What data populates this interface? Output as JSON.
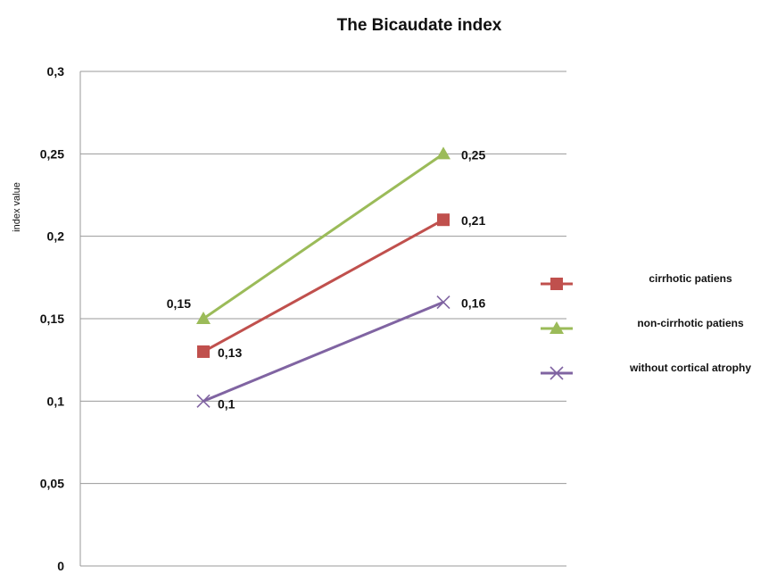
{
  "chart_data": {
    "type": "line",
    "title": "The Bicaudate index",
    "xlabel": "",
    "ylabel": "index value",
    "ylim": [
      0,
      0.3
    ],
    "yticks": [
      0,
      0.05,
      0.1,
      0.15,
      0.2,
      0.25,
      0.3
    ],
    "ytick_labels": [
      "0",
      "0,05",
      "0,1",
      "0,15",
      "0,2",
      "0,25",
      "0,3"
    ],
    "grid": true,
    "legend": "right",
    "categories": [
      "",
      ""
    ],
    "series": [
      {
        "name": "cirrhotic patiens",
        "values": [
          0.13,
          0.21
        ],
        "labels": [
          "0,13",
          "0,21"
        ],
        "color": "#c0504d",
        "marker": "square"
      },
      {
        "name": "non-cirrhotic patiens",
        "values": [
          0.15,
          0.25
        ],
        "labels": [
          "0,15",
          "0,25"
        ],
        "color": "#9bbb59",
        "marker": "triangle"
      },
      {
        "name": "without cortical atrophy",
        "values": [
          0.1,
          0.16
        ],
        "labels": [
          "0,1",
          "0,16"
        ],
        "color": "#8064a2",
        "marker": "x"
      }
    ]
  }
}
